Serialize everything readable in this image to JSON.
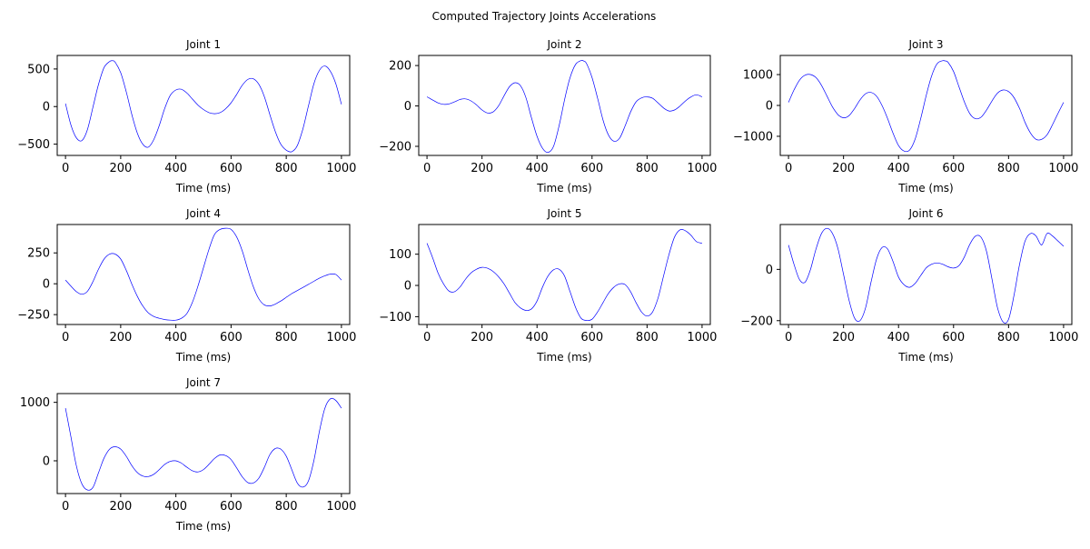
{
  "figure": {
    "title": "Computed Trajectory Joints Accelerations"
  },
  "line_color": "#0000ff",
  "chart_data": [
    {
      "type": "line",
      "title": "Joint 1",
      "xlabel": "Time (ms)",
      "ylabel": "",
      "xlim": [
        -30,
        1030
      ],
      "ylim": [
        -650,
        680
      ],
      "xticks": [
        0,
        200,
        400,
        600,
        800,
        1000
      ],
      "yticks": [
        -500,
        0,
        500
      ],
      "grid": false,
      "series": [
        {
          "x": [
            0,
            20,
            40,
            60,
            80,
            100,
            120,
            140,
            160,
            170,
            180,
            200,
            220,
            240,
            260,
            280,
            300,
            320,
            340,
            360,
            380,
            400,
            420,
            440,
            460,
            480,
            500,
            520,
            540,
            560,
            580,
            600,
            620,
            640,
            660,
            680,
            700,
            720,
            740,
            760,
            780,
            800,
            820,
            840,
            860,
            880,
            900,
            920,
            940,
            960,
            980,
            1000
          ],
          "y": [
            40,
            -250,
            -420,
            -450,
            -300,
            0,
            300,
            520,
            600,
            610,
            590,
            450,
            200,
            -100,
            -350,
            -500,
            -540,
            -440,
            -250,
            -20,
            150,
            220,
            230,
            180,
            100,
            20,
            -40,
            -80,
            -95,
            -80,
            -30,
            50,
            160,
            280,
            360,
            370,
            300,
            140,
            -100,
            -330,
            -500,
            -580,
            -600,
            -520,
            -300,
            0,
            300,
            480,
            540,
            470,
            300,
            30
          ]
        }
      ]
    },
    {
      "type": "line",
      "title": "Joint 2",
      "xlabel": "Time (ms)",
      "ylabel": "",
      "xlim": [
        -30,
        1030
      ],
      "ylim": [
        -245,
        250
      ],
      "xticks": [
        0,
        200,
        400,
        600,
        800,
        1000
      ],
      "yticks": [
        -200,
        0,
        200
      ],
      "grid": false,
      "series": [
        {
          "x": [
            0,
            20,
            40,
            60,
            80,
            100,
            120,
            140,
            160,
            180,
            200,
            220,
            240,
            260,
            280,
            300,
            320,
            340,
            360,
            380,
            400,
            420,
            440,
            460,
            480,
            500,
            520,
            540,
            560,
            570,
            580,
            600,
            620,
            640,
            660,
            680,
            700,
            720,
            740,
            760,
            780,
            800,
            820,
            840,
            860,
            880,
            900,
            920,
            940,
            960,
            980,
            1000
          ],
          "y": [
            45,
            30,
            15,
            8,
            10,
            20,
            32,
            35,
            25,
            5,
            -20,
            -35,
            -30,
            0,
            50,
            95,
            115,
            100,
            40,
            -60,
            -150,
            -210,
            -230,
            -200,
            -100,
            30,
            140,
            205,
            225,
            222,
            210,
            140,
            40,
            -70,
            -145,
            -175,
            -160,
            -100,
            -30,
            20,
            40,
            45,
            38,
            15,
            -10,
            -25,
            -20,
            0,
            25,
            45,
            55,
            45
          ]
        }
      ]
    },
    {
      "type": "line",
      "title": "Joint 3",
      "xlabel": "Time (ms)",
      "ylabel": "",
      "xlim": [
        -30,
        1030
      ],
      "ylim": [
        -1620,
        1620
      ],
      "xticks": [
        0,
        200,
        400,
        600,
        800,
        1000
      ],
      "yticks": [
        -1000,
        0,
        1000
      ],
      "grid": false,
      "series": [
        {
          "x": [
            0,
            20,
            40,
            60,
            80,
            100,
            120,
            140,
            160,
            180,
            200,
            220,
            240,
            260,
            280,
            300,
            320,
            340,
            360,
            380,
            400,
            420,
            440,
            460,
            480,
            500,
            520,
            540,
            560,
            570,
            580,
            600,
            620,
            640,
            660,
            680,
            700,
            720,
            740,
            760,
            780,
            800,
            820,
            840,
            860,
            880,
            900,
            920,
            940,
            960,
            980,
            1000
          ],
          "y": [
            100,
            500,
            820,
            980,
            1000,
            900,
            650,
            300,
            -50,
            -300,
            -400,
            -330,
            -100,
            180,
            380,
            420,
            300,
            0,
            -420,
            -900,
            -1300,
            -1480,
            -1450,
            -1100,
            -450,
            300,
            950,
            1350,
            1450,
            1440,
            1400,
            1100,
            600,
            100,
            -280,
            -430,
            -380,
            -150,
            150,
            400,
            500,
            450,
            250,
            -100,
            -550,
            -900,
            -1100,
            -1100,
            -950,
            -620,
            -250,
            100
          ]
        }
      ]
    },
    {
      "type": "line",
      "title": "Joint 4",
      "xlabel": "Time (ms)",
      "ylabel": "",
      "xlim": [
        -30,
        1030
      ],
      "ylim": [
        -330,
        480
      ],
      "xticks": [
        0,
        200,
        400,
        600,
        800,
        1000
      ],
      "yticks": [
        -250,
        0,
        250
      ],
      "grid": false,
      "series": [
        {
          "x": [
            0,
            20,
            40,
            60,
            80,
            100,
            120,
            140,
            160,
            180,
            200,
            220,
            240,
            260,
            280,
            300,
            320,
            340,
            360,
            380,
            400,
            420,
            440,
            460,
            480,
            500,
            520,
            540,
            560,
            580,
            600,
            620,
            640,
            660,
            680,
            700,
            720,
            740,
            760,
            780,
            800,
            820,
            840,
            860,
            880,
            900,
            920,
            940,
            960,
            980,
            1000
          ],
          "y": [
            30,
            -20,
            -65,
            -85,
            -60,
            20,
            120,
            200,
            240,
            240,
            200,
            110,
            0,
            -100,
            -180,
            -235,
            -265,
            -280,
            -290,
            -295,
            -295,
            -280,
            -240,
            -150,
            -20,
            130,
            280,
            400,
            440,
            450,
            440,
            380,
            270,
            120,
            -20,
            -120,
            -170,
            -180,
            -165,
            -140,
            -110,
            -80,
            -55,
            -30,
            -5,
            20,
            45,
            65,
            78,
            75,
            30
          ]
        }
      ]
    },
    {
      "type": "line",
      "title": "Joint 5",
      "xlabel": "Time (ms)",
      "ylabel": "",
      "xlim": [
        -30,
        1030
      ],
      "ylim": [
        -125,
        195
      ],
      "xticks": [
        0,
        200,
        400,
        600,
        800,
        1000
      ],
      "yticks": [
        -100,
        0,
        100
      ],
      "grid": false,
      "series": [
        {
          "x": [
            0,
            20,
            40,
            60,
            80,
            100,
            120,
            140,
            160,
            180,
            200,
            220,
            240,
            260,
            280,
            300,
            320,
            340,
            360,
            380,
            400,
            420,
            440,
            460,
            480,
            500,
            520,
            540,
            560,
            580,
            600,
            620,
            640,
            660,
            680,
            700,
            720,
            740,
            760,
            780,
            800,
            820,
            840,
            860,
            880,
            900,
            920,
            940,
            960,
            980,
            1000
          ],
          "y": [
            135,
            90,
            40,
            5,
            -18,
            -20,
            -5,
            20,
            40,
            52,
            58,
            55,
            45,
            28,
            5,
            -25,
            -55,
            -72,
            -80,
            -75,
            -50,
            -5,
            30,
            50,
            52,
            30,
            -20,
            -70,
            -105,
            -112,
            -108,
            -85,
            -55,
            -25,
            -5,
            5,
            3,
            -20,
            -55,
            -85,
            -98,
            -85,
            -40,
            30,
            100,
            155,
            178,
            175,
            160,
            140,
            135
          ]
        }
      ]
    },
    {
      "type": "line",
      "title": "Joint 6",
      "xlabel": "Time (ms)",
      "ylabel": "",
      "xlim": [
        -30,
        1030
      ],
      "ylim": [
        -215,
        175
      ],
      "xticks": [
        0,
        200,
        400,
        600,
        800,
        1000
      ],
      "yticks": [
        -200,
        0
      ],
      "grid": false,
      "series": [
        {
          "x": [
            0,
            20,
            40,
            60,
            80,
            100,
            120,
            140,
            160,
            180,
            200,
            220,
            240,
            260,
            280,
            300,
            320,
            340,
            360,
            380,
            400,
            420,
            440,
            460,
            480,
            500,
            520,
            540,
            560,
            580,
            600,
            620,
            640,
            660,
            680,
            700,
            720,
            740,
            760,
            780,
            800,
            820,
            840,
            860,
            880,
            900,
            920,
            940,
            960,
            980,
            1000
          ],
          "y": [
            95,
            20,
            -40,
            -50,
            0,
            80,
            140,
            160,
            140,
            80,
            -20,
            -120,
            -190,
            -200,
            -150,
            -50,
            40,
            85,
            80,
            30,
            -30,
            -60,
            -70,
            -55,
            -25,
            5,
            20,
            25,
            20,
            10,
            5,
            15,
            50,
            100,
            130,
            125,
            70,
            -40,
            -150,
            -205,
            -195,
            -100,
            20,
            110,
            140,
            130,
            95,
            140,
            130,
            110,
            90
          ]
        }
      ]
    },
    {
      "type": "line",
      "title": "Joint 7",
      "xlabel": "Time (ms)",
      "ylabel": "",
      "xlim": [
        -30,
        1030
      ],
      "ylim": [
        -560,
        1150
      ],
      "xticks": [
        0,
        200,
        400,
        600,
        800,
        1000
      ],
      "yticks": [
        0,
        1000
      ],
      "grid": false,
      "series": [
        {
          "x": [
            0,
            20,
            40,
            60,
            80,
            100,
            120,
            140,
            160,
            180,
            200,
            220,
            240,
            260,
            280,
            300,
            320,
            340,
            360,
            380,
            400,
            420,
            440,
            460,
            480,
            500,
            520,
            540,
            560,
            580,
            600,
            620,
            640,
            660,
            680,
            700,
            720,
            740,
            760,
            780,
            800,
            820,
            840,
            860,
            880,
            900,
            920,
            940,
            960,
            980,
            1000
          ],
          "y": [
            900,
            400,
            -100,
            -400,
            -500,
            -450,
            -200,
            50,
            200,
            240,
            200,
            80,
            -80,
            -200,
            -260,
            -270,
            -230,
            -150,
            -60,
            -10,
            0,
            -40,
            -110,
            -170,
            -190,
            -150,
            -60,
            40,
            100,
            90,
            20,
            -120,
            -270,
            -370,
            -380,
            -300,
            -120,
            100,
            210,
            200,
            80,
            -150,
            -380,
            -450,
            -350,
            0,
            500,
            900,
            1060,
            1030,
            900
          ]
        }
      ]
    }
  ]
}
